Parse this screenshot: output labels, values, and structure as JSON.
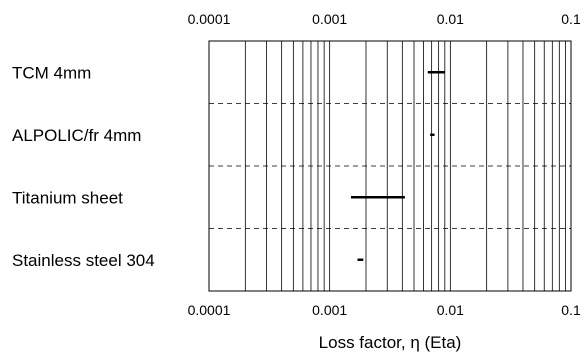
{
  "chart_data": {
    "type": "range",
    "x_scale": "log",
    "xlim": [
      0.0001,
      0.1
    ],
    "x_ticks": [
      "0.0001",
      "0.001",
      "0.01",
      "0.1"
    ],
    "x_tick_values": [
      0.0001,
      0.001,
      0.01,
      0.1
    ],
    "xlabel": "Loss factor, η (Eta)",
    "ylabel": "",
    "title": "",
    "grid": {
      "vertical_minor": true,
      "horizontal": "dashed"
    },
    "categories": [
      "TCM 4mm",
      "ALPOLIC/fr 4mm",
      "Titanium sheet",
      "Stainless steel 304"
    ],
    "ranges": [
      {
        "low": 0.0065,
        "high": 0.009
      },
      {
        "low": 0.0068,
        "high": 0.0074
      },
      {
        "low": 0.0015,
        "high": 0.0042
      },
      {
        "low": 0.0017,
        "high": 0.0019
      }
    ]
  }
}
